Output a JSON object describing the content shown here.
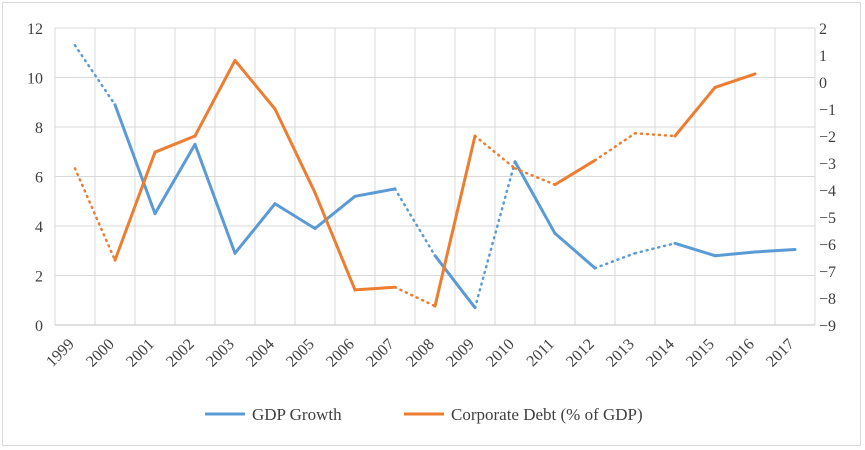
{
  "chart_data": {
    "type": "line",
    "categories": [
      "1999",
      "2000",
      "2001",
      "2002",
      "2003",
      "2004",
      "2005",
      "2006",
      "2007",
      "2008",
      "2009",
      "2010",
      "2011",
      "2012",
      "2013",
      "2014",
      "2015",
      "2016",
      "2017"
    ],
    "y_left": {
      "ylim": [
        0,
        12
      ],
      "ticks": [
        "0",
        "2",
        "4",
        "6",
        "8",
        "10",
        "12"
      ]
    },
    "y_right": {
      "ylim": [
        -9,
        2
      ],
      "ticks": [
        "−9",
        "−8",
        "−7",
        "−6",
        "−5",
        "−4",
        "−3",
        "−2",
        "−1",
        "0",
        "1",
        "2"
      ]
    },
    "grid": true,
    "legend_position": "bottom",
    "series": [
      {
        "name": "GDP Growth",
        "axis": "left",
        "color": "#5b9bd5",
        "values": [
          11.3,
          8.9,
          4.5,
          7.3,
          2.9,
          4.9,
          3.9,
          5.2,
          5.5,
          2.8,
          0.7,
          6.6,
          3.7,
          2.3,
          2.9,
          3.3,
          2.8,
          2.95,
          3.05
        ],
        "dotted_segments": [
          0,
          8,
          10,
          13,
          14
        ]
      },
      {
        "name": "Corporate Debt (% of GDP)",
        "axis": "right",
        "color": "#ed7d31",
        "values": [
          -3.2,
          -6.6,
          -2.6,
          -2.0,
          0.8,
          -1.0,
          -4.1,
          -7.7,
          -7.6,
          -8.3,
          -2.0,
          -3.2,
          -3.8,
          -2.9,
          -1.9,
          -2.0,
          -0.2,
          0.3,
          null
        ],
        "dotted_segments": [
          0,
          8,
          10,
          11,
          13,
          14
        ]
      }
    ]
  }
}
